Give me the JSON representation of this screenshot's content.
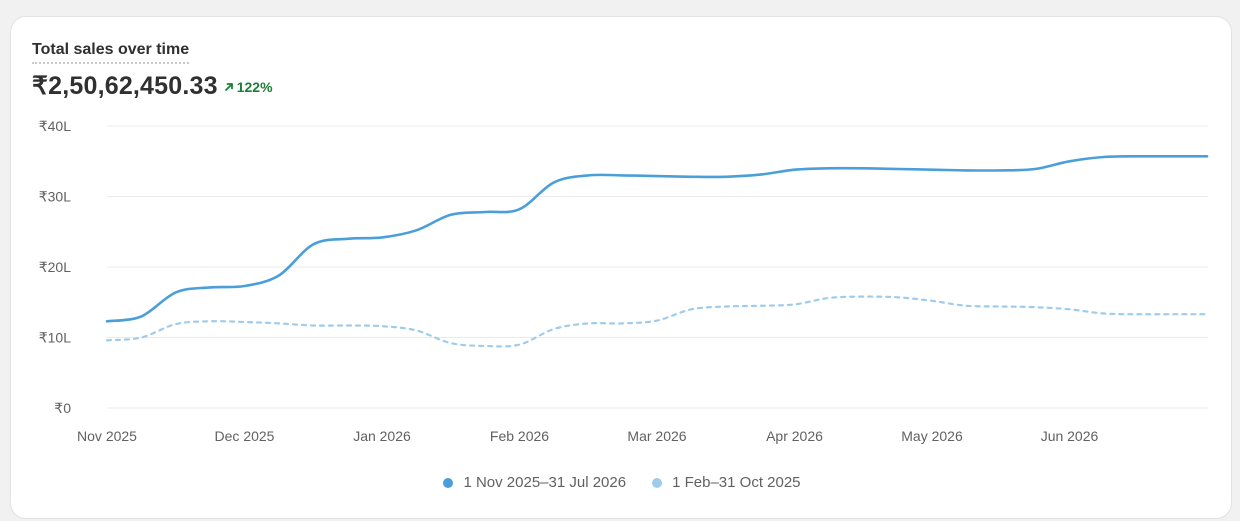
{
  "card": {
    "title": "Total sales over time",
    "total_value": "₹2,50,62,450.33",
    "delta_text": "122%",
    "delta_direction": "up",
    "delta_icon": "arrow-up-right-icon"
  },
  "colors": {
    "current_series": "#4a9fdb",
    "comparison_series": "#9fcbec",
    "delta_positive": "#1a7f37",
    "gridline": "#ebebeb",
    "axis_text": "#616161"
  },
  "chart_data": {
    "type": "line",
    "title": "Total sales over time",
    "xlabel": "",
    "ylabel": "",
    "x_tick_labels": [
      "Nov 2025",
      "Dec 2025",
      "Jan 2026",
      "Feb 2026",
      "Mar 2026",
      "Apr 2026",
      "May 2026",
      "Jun 2026"
    ],
    "y_tick_labels": [
      "₹0",
      "₹10L",
      "₹20L",
      "₹30L",
      "₹40L"
    ],
    "y_ticks": [
      0,
      10,
      20,
      30,
      40
    ],
    "y_unit": "lakh ₹",
    "ylim": [
      0,
      40
    ],
    "x_range_months": [
      0,
      8
    ],
    "grid": true,
    "legend_position": "bottom-center",
    "series": [
      {
        "name": "1 Nov 2025–31 Jul 2026",
        "style": "solid",
        "x": [
          0,
          0.25,
          0.5,
          0.75,
          1,
          1.25,
          1.5,
          1.75,
          2,
          2.25,
          2.5,
          2.75,
          3,
          3.25,
          3.5,
          3.75,
          4,
          4.25,
          4.5,
          4.75,
          5,
          5.25,
          5.5,
          5.75,
          6,
          6.25,
          6.5,
          6.75,
          7,
          7.25,
          7.5,
          7.75,
          8
        ],
        "values": [
          12.3,
          13.0,
          16.4,
          17.1,
          17.3,
          18.8,
          23.2,
          24.0,
          24.2,
          25.2,
          27.4,
          27.8,
          28.2,
          32.0,
          33.0,
          33.0,
          32.9,
          32.8,
          32.8,
          33.1,
          33.8,
          34.0,
          34.0,
          33.9,
          33.8,
          33.7,
          33.7,
          33.9,
          35.0,
          35.6,
          35.7,
          35.7,
          35.7
        ]
      },
      {
        "name": "1 Feb–31 Oct 2025",
        "style": "dashed",
        "x": [
          0,
          0.25,
          0.5,
          0.75,
          1,
          1.25,
          1.5,
          1.75,
          2,
          2.25,
          2.5,
          2.75,
          3,
          3.25,
          3.5,
          3.75,
          4,
          4.25,
          4.5,
          4.75,
          5,
          5.25,
          5.5,
          5.75,
          6,
          6.25,
          6.5,
          6.75,
          7,
          7.25,
          7.5,
          7.75,
          8
        ],
        "values": [
          9.6,
          10.0,
          11.9,
          12.3,
          12.2,
          12.0,
          11.7,
          11.7,
          11.6,
          11.0,
          9.2,
          8.8,
          9.0,
          11.2,
          12.0,
          12.0,
          12.4,
          14.0,
          14.4,
          14.5,
          14.7,
          15.6,
          15.8,
          15.7,
          15.2,
          14.5,
          14.4,
          14.3,
          14.0,
          13.4,
          13.3,
          13.3,
          13.3
        ]
      }
    ]
  }
}
